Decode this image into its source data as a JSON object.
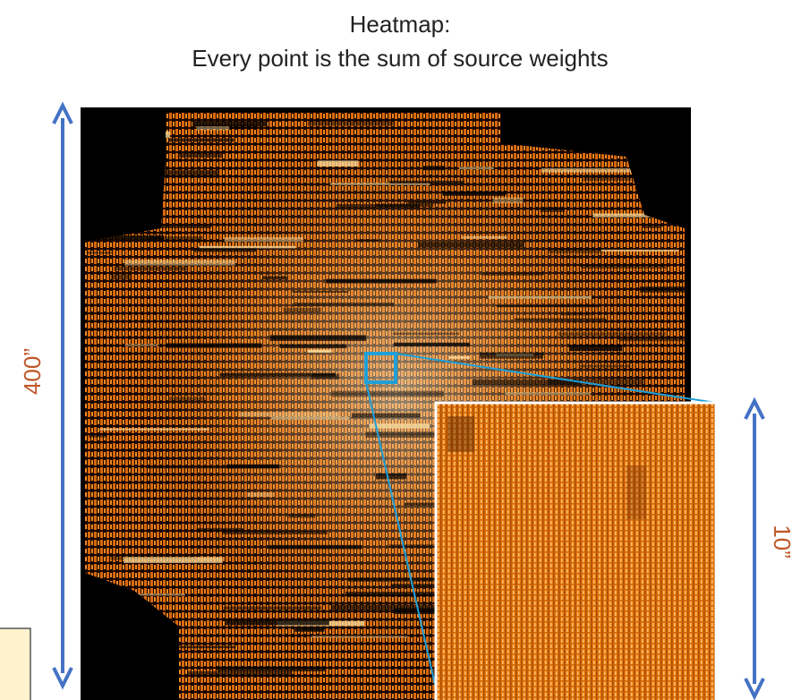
{
  "title": {
    "lines": [
      "Heatmap:",
      "Every point is the sum of source weights"
    ]
  },
  "labels": {
    "left_scale": "400”",
    "right_scale": "10”"
  }
}
